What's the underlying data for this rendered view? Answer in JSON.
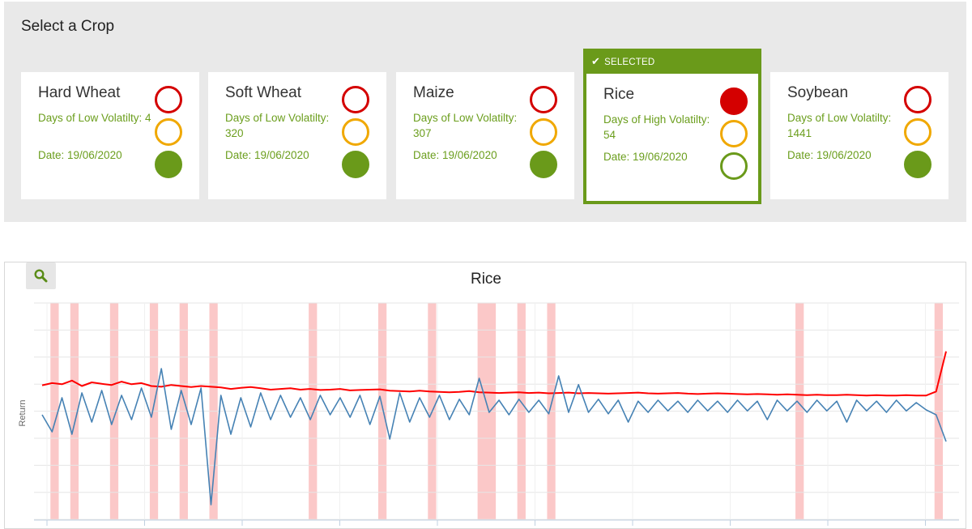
{
  "section": {
    "title": "Select a Crop"
  },
  "selected_label": "SELECTED",
  "cards": [
    {
      "name": "Hard Wheat",
      "days_text": "Days of Low Volatilty: 4",
      "date_text": "Date: 19/06/2020",
      "active_light": "green",
      "selected": false
    },
    {
      "name": "Soft Wheat",
      "days_text": "Days of Low Volatilty: 320",
      "date_text": "Date: 19/06/2020",
      "active_light": "green",
      "selected": false
    },
    {
      "name": "Maize",
      "days_text": "Days of Low Volatilty: 307",
      "date_text": "Date: 19/06/2020",
      "active_light": "green",
      "selected": false
    },
    {
      "name": "Rice",
      "days_text": "Days of High Volatilty: 54",
      "date_text": "Date: 19/06/2020",
      "active_light": "red",
      "selected": true
    },
    {
      "name": "Soybean",
      "days_text": "Days of Low Volatilty: 1441",
      "date_text": "Date: 19/06/2020",
      "active_light": "green",
      "selected": false
    }
  ],
  "colors": {
    "accent_green": "#6a9a1a",
    "light_red": "#d40000",
    "light_amber": "#f0a800",
    "volatility_line": "#ff0000",
    "return_line": "#4682b4",
    "high_volatility_band": "#fbc8c8"
  },
  "icons": {
    "zoom": "search-icon",
    "selected": "checkmark-icon"
  },
  "chart_data": {
    "type": "line",
    "title": "Rice",
    "ylabel": "Return",
    "xlabel": "",
    "grid": true,
    "series": [
      {
        "name": "",
        "color": "#ff0000",
        "kind": "volatility",
        "values": [
          0.32,
          0.38,
          0.35,
          0.45,
          0.3,
          0.4,
          0.36,
          0.33,
          0.42,
          0.35,
          0.38,
          0.3,
          0.28,
          0.33,
          0.3,
          0.27,
          0.3,
          0.28,
          0.26,
          0.22,
          0.25,
          0.27,
          0.24,
          0.2,
          0.22,
          0.24,
          0.2,
          0.22,
          0.19,
          0.2,
          0.22,
          0.18,
          0.19,
          0.2,
          0.21,
          0.17,
          0.16,
          0.15,
          0.17,
          0.15,
          0.14,
          0.13,
          0.14,
          0.16,
          0.13,
          0.12,
          0.11,
          0.12,
          0.13,
          0.11,
          0.12,
          0.1,
          0.11,
          0.12,
          0.1,
          0.11,
          0.1,
          0.09,
          0.1,
          0.11,
          0.12,
          0.1,
          0.09,
          0.1,
          0.11,
          0.09,
          0.08,
          0.09,
          0.1,
          0.09,
          0.08,
          0.07,
          0.08,
          0.07,
          0.06,
          0.07,
          0.06,
          0.05,
          0.06,
          0.05,
          0.05,
          0.06,
          0.05,
          0.04,
          0.05,
          0.04,
          0.04,
          0.05,
          0.04,
          0.04,
          0.15,
          1.25
        ]
      },
      {
        "name": "Return",
        "color": "#4682b4",
        "kind": "return",
        "values": [
          -0.2,
          -0.55,
          0.15,
          -0.6,
          0.25,
          -0.35,
          0.3,
          -0.4,
          0.2,
          -0.3,
          0.35,
          -0.25,
          0.75,
          -0.5,
          0.3,
          -0.4,
          0.35,
          -2.05,
          0.2,
          -0.6,
          0.15,
          -0.45,
          0.25,
          -0.3,
          0.2,
          -0.25,
          0.15,
          -0.3,
          0.2,
          -0.2,
          0.15,
          -0.25,
          0.2,
          -0.4,
          0.18,
          -0.7,
          0.25,
          -0.35,
          0.15,
          -0.25,
          0.2,
          -0.3,
          0.12,
          -0.2,
          0.55,
          -0.15,
          0.1,
          -0.2,
          0.12,
          -0.15,
          0.1,
          -0.18,
          0.6,
          -0.15,
          0.42,
          -0.15,
          0.12,
          -0.18,
          0.1,
          -0.35,
          0.08,
          -0.15,
          0.1,
          -0.12,
          0.08,
          -0.15,
          0.1,
          -0.12,
          0.08,
          -0.15,
          0.1,
          -0.12,
          0.08,
          -0.3,
          0.1,
          -0.12,
          0.08,
          -0.15,
          0.1,
          -0.12,
          0.08,
          -0.35,
          0.1,
          -0.12,
          0.08,
          -0.15,
          0.1,
          -0.12,
          0.05,
          -0.1,
          -0.2,
          -0.75
        ]
      }
    ],
    "high_volatility_periods": [
      [
        1,
        2
      ],
      [
        3,
        4
      ],
      [
        7,
        8
      ],
      [
        11,
        12
      ],
      [
        14,
        15
      ],
      [
        17,
        18
      ],
      [
        27,
        28
      ],
      [
        34,
        35
      ],
      [
        39,
        40
      ],
      [
        44,
        46
      ],
      [
        48,
        49
      ],
      [
        51,
        52
      ],
      [
        76,
        77
      ],
      [
        90,
        91
      ]
    ]
  }
}
